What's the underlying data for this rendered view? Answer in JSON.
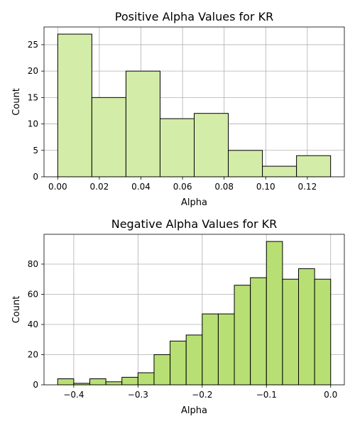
{
  "chart_data": [
    {
      "type": "bar",
      "title": "Positive Alpha Values for KR",
      "xlabel": "Alpha",
      "ylabel": "Count",
      "bin_edges": [
        0.0,
        0.0164,
        0.0328,
        0.0492,
        0.0656,
        0.082,
        0.0984,
        0.1148,
        0.1312
      ],
      "values": [
        27,
        15,
        20,
        11,
        12,
        5,
        2,
        4
      ],
      "xlim": [
        -0.0066,
        0.1378
      ],
      "ylim": [
        0,
        28.35
      ],
      "xticks": [
        0.0,
        0.02,
        0.04,
        0.06,
        0.08,
        0.1,
        0.12
      ],
      "xtick_labels": [
        "0.00",
        "0.02",
        "0.04",
        "0.06",
        "0.08",
        "0.10",
        "0.12"
      ],
      "yticks": [
        0,
        5,
        10,
        15,
        20,
        25
      ],
      "ytick_labels": [
        "0",
        "5",
        "10",
        "15",
        "20",
        "25"
      ],
      "grid": true,
      "bar_color": "#d3eca8"
    },
    {
      "type": "bar",
      "title": "Negative Alpha Values for KR",
      "xlabel": "Alpha",
      "ylabel": "Count",
      "bin_edges": [
        -0.425,
        -0.4,
        -0.375,
        -0.35,
        -0.325,
        -0.3,
        -0.275,
        -0.25,
        -0.225,
        -0.2,
        -0.175,
        -0.15,
        -0.125,
        -0.1,
        -0.075,
        -0.05,
        -0.025,
        0.0
      ],
      "values": [
        4,
        1,
        4,
        2,
        5,
        8,
        20,
        29,
        33,
        47,
        47,
        66,
        71,
        95,
        70,
        77,
        70
      ],
      "xlim": [
        -0.4463,
        0.0213
      ],
      "ylim": [
        0,
        99.75
      ],
      "xticks": [
        -0.4,
        -0.3,
        -0.2,
        -0.1,
        0.0
      ],
      "xtick_labels": [
        "−0.4",
        "−0.3",
        "−0.2",
        "−0.1",
        "0.0"
      ],
      "yticks": [
        0,
        20,
        40,
        60,
        80
      ],
      "ytick_labels": [
        "0",
        "20",
        "40",
        "60",
        "80"
      ],
      "grid": true,
      "bar_color": "#b8df74"
    }
  ]
}
